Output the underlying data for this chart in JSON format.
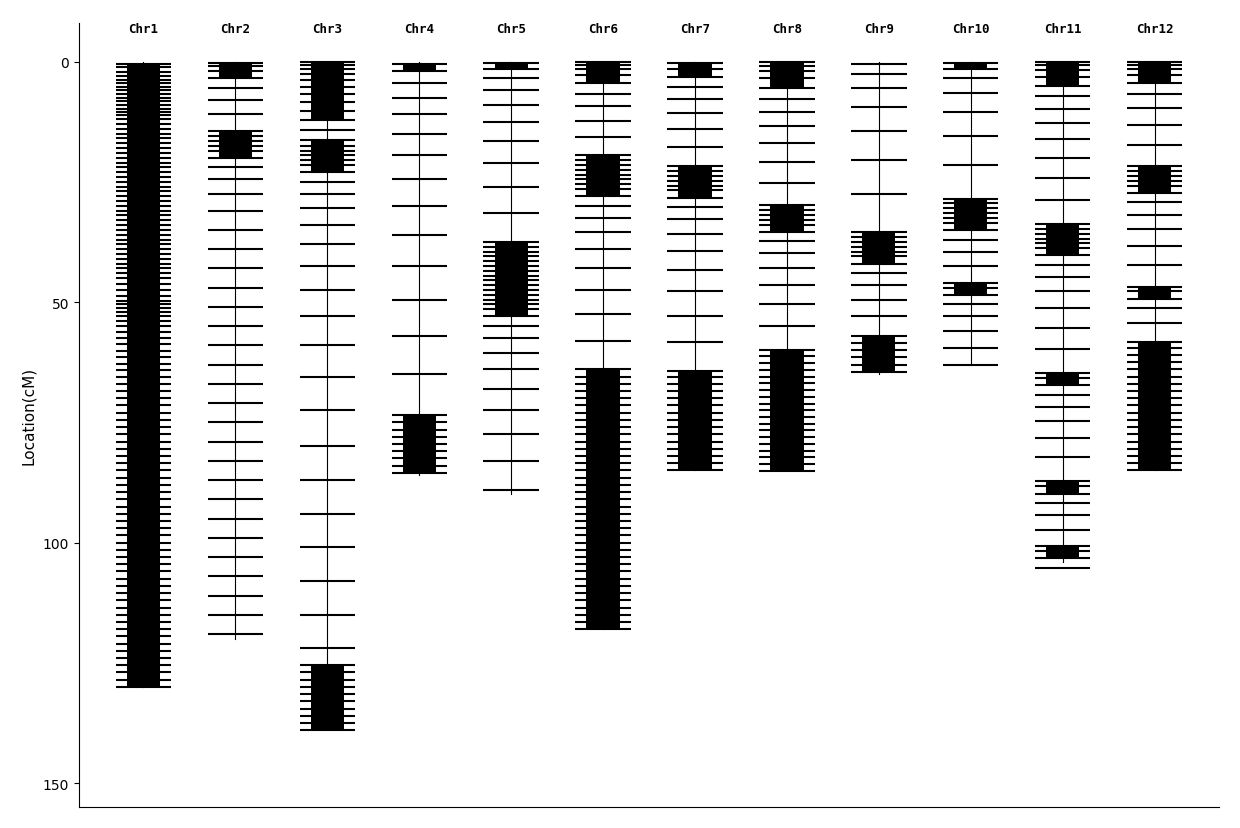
{
  "chromosomes": [
    "Chr1",
    "Chr2",
    "Chr3",
    "Chr4",
    "Chr5",
    "Chr6",
    "Chr7",
    "Chr8",
    "Chr9",
    "Chr10",
    "Chr11",
    "Chr12"
  ],
  "chr_lengths": [
    130,
    120,
    128,
    86,
    90,
    118,
    85,
    85,
    65,
    63,
    104,
    85
  ],
  "ylabel": "Location(cM)",
  "ylim": [
    155,
    -8
  ],
  "yticks": [
    0,
    50,
    100,
    150
  ],
  "background_color": "#ffffff",
  "chr_markers": {
    "Chr1": [
      0.5,
      1.2,
      2.1,
      3.0,
      3.8,
      4.5,
      5.2,
      6.0,
      6.8,
      7.5,
      8.3,
      9.1,
      9.8,
      10.5,
      11.2,
      12.0,
      13.0,
      14.0,
      15.0,
      16.0,
      17.0,
      18.0,
      19.0,
      20.0,
      21.0,
      22.0,
      23.0,
      24.0,
      25.0,
      26.0,
      27.0,
      28.0,
      29.0,
      30.0,
      31.0,
      32.0,
      33.0,
      34.0,
      35.0,
      36.0,
      37.0,
      38.0,
      39.0,
      40.0,
      41.0,
      42.0,
      43.0,
      44.0,
      45.0,
      46.2,
      47.5,
      48.8,
      49.8,
      50.5,
      51.3,
      52.1,
      53.0,
      54.0,
      55.0,
      56.2,
      57.5,
      58.8,
      60.1,
      61.5,
      62.8,
      64.2,
      65.5,
      67.0,
      68.5,
      70.0,
      71.5,
      73.0,
      74.5,
      76.0,
      77.5,
      79.0,
      80.5,
      82.0,
      83.5,
      85.0,
      86.5,
      88.0,
      89.5,
      91.0,
      92.5,
      94.0,
      95.5,
      97.0,
      98.5,
      100.0,
      101.5,
      103.0,
      104.5,
      106.0,
      107.5,
      109.0,
      110.5,
      112.0,
      113.5,
      115.0,
      116.5,
      118.0,
      119.5,
      121.0,
      122.5,
      124.0,
      125.5,
      127.0,
      128.5,
      130.0
    ],
    "Chr2": [
      0.3,
      1.0,
      2.0,
      3.5,
      5.5,
      8.0,
      11.0,
      14.5,
      15.5,
      16.5,
      17.5,
      18.5,
      20.0,
      22.0,
      24.5,
      27.5,
      31.0,
      35.0,
      39.0,
      43.0,
      47.0,
      51.0,
      55.0,
      59.0,
      63.0,
      67.0,
      71.0,
      75.0,
      79.0,
      83.0,
      87.0,
      91.0,
      95.0,
      99.0,
      103.0,
      107.0,
      111.0,
      115.0,
      119.0
    ],
    "Chr3": [
      0.2,
      0.8,
      1.5,
      2.5,
      3.8,
      5.2,
      6.8,
      8.5,
      10.3,
      12.2,
      14.2,
      16.3,
      17.5,
      18.5,
      19.5,
      20.5,
      21.5,
      23.0,
      25.0,
      27.5,
      30.5,
      34.0,
      38.0,
      42.5,
      47.5,
      53.0,
      59.0,
      65.5,
      72.5,
      80.0,
      87.0,
      94.0,
      101.0,
      108.0,
      115.0,
      122.0,
      125.5,
      127.0,
      128.5,
      130.0,
      131.5,
      133.0,
      134.5,
      136.0,
      137.5,
      139.0
    ],
    "Chr4": [
      0.5,
      2.0,
      4.5,
      7.5,
      11.0,
      15.0,
      19.5,
      24.5,
      30.0,
      36.0,
      42.5,
      49.5,
      57.0,
      65.0,
      73.5,
      75.0,
      76.5,
      78.0,
      79.5,
      81.0,
      82.5,
      84.0,
      85.5
    ],
    "Chr5": [
      0.3,
      1.5,
      3.5,
      6.0,
      9.0,
      12.5,
      16.5,
      21.0,
      26.0,
      31.5,
      37.5,
      38.5,
      39.5,
      40.5,
      41.5,
      42.5,
      43.5,
      44.5,
      45.5,
      46.5,
      47.5,
      48.5,
      49.5,
      50.5,
      51.5,
      53.0,
      55.0,
      57.5,
      60.5,
      64.0,
      68.0,
      72.5,
      77.5,
      83.0,
      89.0
    ],
    "Chr6": [
      0.2,
      0.7,
      1.5,
      2.8,
      4.5,
      6.7,
      9.3,
      12.3,
      15.7,
      19.5,
      20.5,
      21.5,
      22.5,
      23.5,
      24.5,
      25.5,
      26.5,
      28.0,
      30.0,
      32.5,
      35.5,
      39.0,
      43.0,
      47.5,
      52.5,
      58.0,
      64.0,
      65.5,
      67.0,
      68.5,
      70.0,
      71.5,
      73.0,
      74.5,
      76.0,
      77.5,
      79.0,
      80.5,
      82.0,
      83.5,
      85.0,
      86.5,
      88.0,
      89.5,
      91.0,
      92.5,
      94.0,
      95.5,
      97.0,
      98.5,
      100.0,
      101.5,
      103.0,
      104.5,
      106.0,
      107.5,
      109.0,
      110.5,
      112.0,
      113.5,
      115.0,
      116.5,
      118.0
    ],
    "Chr7": [
      0.3,
      1.5,
      3.2,
      5.3,
      7.8,
      10.7,
      14.0,
      17.7,
      21.8,
      22.8,
      23.8,
      24.8,
      25.8,
      26.8,
      28.3,
      30.3,
      32.8,
      35.8,
      39.3,
      43.3,
      47.8,
      52.8,
      58.3,
      64.3,
      65.5,
      67.0,
      68.5,
      70.0,
      71.5,
      73.0,
      74.5,
      76.0,
      77.5,
      79.0,
      80.5,
      82.0,
      83.5,
      85.0
    ],
    "Chr8": [
      0.2,
      0.9,
      2.0,
      3.5,
      5.4,
      7.7,
      10.4,
      13.5,
      17.0,
      20.9,
      25.2,
      29.9,
      30.9,
      31.9,
      32.9,
      33.9,
      35.4,
      37.4,
      39.9,
      42.9,
      46.4,
      50.4,
      54.9,
      59.9,
      61.3,
      62.7,
      64.1,
      65.5,
      66.9,
      68.3,
      69.7,
      71.1,
      72.5,
      73.9,
      75.3,
      76.7,
      78.1,
      79.5,
      80.9,
      82.3,
      83.7,
      85.1
    ],
    "Chr9": [
      0.5,
      2.5,
      5.5,
      9.5,
      14.5,
      20.5,
      27.5,
      35.5,
      36.5,
      37.5,
      38.5,
      39.5,
      40.5,
      42.0,
      44.0,
      46.5,
      49.5,
      53.0,
      57.0,
      58.5,
      60.0,
      61.5,
      63.0,
      64.5
    ],
    "Chr10": [
      0.3,
      1.5,
      3.5,
      6.5,
      10.5,
      15.5,
      21.5,
      28.5,
      29.5,
      30.5,
      31.5,
      32.5,
      33.5,
      35.0,
      37.0,
      39.5,
      42.5,
      46.0,
      47.0,
      48.5,
      50.5,
      53.0,
      56.0,
      59.5,
      63.0
    ],
    "Chr11": [
      0.2,
      0.8,
      1.8,
      3.2,
      5.0,
      7.2,
      9.8,
      12.8,
      16.2,
      20.0,
      24.2,
      28.8,
      33.8,
      34.8,
      35.8,
      36.8,
      37.8,
      38.8,
      40.3,
      42.3,
      44.8,
      47.8,
      51.3,
      55.3,
      59.8,
      64.8,
      65.8,
      67.3,
      69.3,
      71.8,
      74.8,
      78.3,
      82.3,
      87.3,
      88.3,
      89.8,
      91.8,
      94.3,
      97.3,
      100.8,
      101.8,
      103.3,
      105.3
    ],
    "Chr12": [
      0.2,
      0.7,
      1.5,
      2.8,
      4.5,
      6.8,
      9.7,
      13.2,
      17.3,
      21.8,
      22.8,
      23.8,
      24.8,
      25.8,
      27.3,
      29.3,
      31.8,
      34.8,
      38.3,
      42.3,
      46.8,
      47.8,
      49.3,
      51.3,
      54.3,
      58.3,
      59.5,
      61.0,
      62.5,
      64.0,
      65.5,
      67.0,
      68.5,
      70.0,
      71.5,
      73.0,
      74.5,
      76.0,
      77.5,
      79.0,
      80.5,
      82.0,
      83.5,
      85.0
    ]
  }
}
